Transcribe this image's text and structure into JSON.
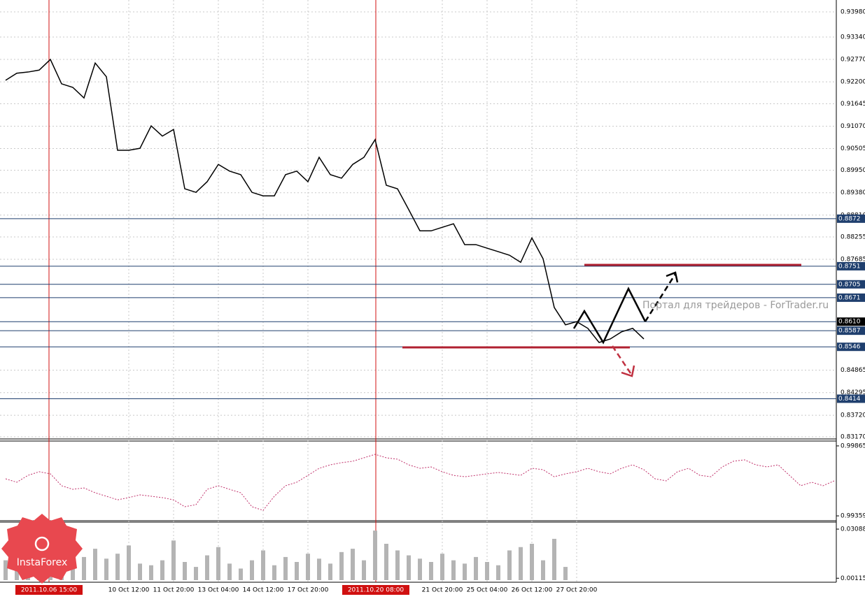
{
  "chart_data": [
    {
      "type": "line",
      "color": "#000000",
      "ylim": [
        0.8317,
        0.9398
      ],
      "watermark": "Портал для трейдеров - ForTrader.ru",
      "logo": "InstaForex",
      "markers": [
        "2011.10.06 15:00",
        "2011.10.20 08:00"
      ],
      "categories": [
        null,
        null,
        null,
        null,
        null,
        null,
        null,
        null,
        null,
        null,
        null,
        "10 Oct 12:00",
        null,
        null,
        null,
        "11 Oct 20:00",
        null,
        null,
        null,
        "13 Oct 04:00",
        null,
        null,
        null,
        "14 Oct 12:00",
        null,
        null,
        null,
        "17 Oct 20:00",
        null,
        null,
        null,
        null,
        null,
        null,
        null,
        null,
        null,
        null,
        null,
        "21 Oct 20:00",
        null,
        null,
        null,
        "25 Oct 04:00",
        null,
        null,
        null,
        "26 Oct 12:00",
        null,
        null,
        null,
        "27 Oct 20:00",
        null,
        null,
        null,
        null,
        null,
        null,
        null,
        null,
        null,
        null,
        null,
        null,
        null,
        null,
        null,
        null,
        null,
        null,
        null,
        null,
        null,
        null,
        null
      ],
      "values": [
        0.9224,
        0.9242,
        0.9245,
        0.925,
        0.9277,
        0.9215,
        0.9206,
        0.9179,
        0.9268,
        0.9233,
        0.9046,
        0.9046,
        0.9051,
        0.9108,
        0.9082,
        0.9099,
        0.8948,
        0.8939,
        0.8966,
        0.901,
        0.8993,
        0.8984,
        0.8939,
        0.893,
        0.893,
        0.8984,
        0.8993,
        0.8966,
        0.9028,
        0.8984,
        0.8975,
        0.901,
        0.9028,
        0.9073,
        0.8957,
        0.8948,
        0.8895,
        0.8841,
        0.8841,
        0.885,
        0.8859,
        0.8806,
        0.8806,
        0.8797,
        0.8788,
        0.8779,
        0.8761,
        0.8823,
        0.877,
        0.8646,
        0.8602,
        0.861,
        0.8593,
        0.8557,
        0.8566,
        0.8584,
        0.8593,
        0.8566,
        null,
        null,
        null,
        null,
        null,
        null,
        null,
        null,
        null,
        null,
        null,
        null,
        null,
        null,
        null,
        null,
        null
      ],
      "yticks": [
        {
          "value": 0.9398,
          "label": "0.93980"
        },
        {
          "value": 0.9334,
          "label": "0.93340"
        },
        {
          "value": 0.9277,
          "label": "0.92770"
        },
        {
          "value": 0.922,
          "label": "0.92200"
        },
        0.91645,
        {
          "value": 0.9107,
          "label": "0.91070"
        },
        0.90505,
        {
          "value": 0.8995,
          "label": "0.89950"
        },
        {
          "value": 0.8938,
          "label": "0.89380"
        },
        {
          "value": 0.8881,
          "label": "0.88810"
        },
        0.88255,
        0.87685,
        0.84865,
        0.84295,
        {
          "value": 0.8372,
          "label": "0.83720"
        },
        {
          "value": 0.8317,
          "label": "0.83170"
        }
      ],
      "levels": [
        0.8872,
        0.8751,
        0.8705,
        0.8671,
        {
          "value": 0.861,
          "label": "0.8610"
        },
        0.8587,
        0.8546,
        0.8414
      ]
    },
    {
      "type": "line",
      "color": "#c0306a",
      "ylim": [
        0.99334,
        0.9989
      ],
      "values": [
        0.99627,
        0.99602,
        0.99652,
        0.99678,
        0.99663,
        0.99577,
        0.99551,
        0.99561,
        0.99526,
        0.99501,
        0.99475,
        0.99491,
        0.99511,
        0.99501,
        0.99491,
        0.99475,
        0.99425,
        0.9944,
        0.99551,
        0.99577,
        0.99551,
        0.99526,
        0.99425,
        0.99399,
        0.99501,
        0.99577,
        0.99602,
        0.99652,
        0.99703,
        0.99728,
        0.99744,
        0.99754,
        0.99779,
        0.99804,
        0.99779,
        0.99769,
        0.99728,
        0.99703,
        0.99713,
        0.99678,
        0.99652,
        0.99642,
        0.99652,
        0.99663,
        0.99673,
        0.99663,
        0.99652,
        0.99703,
        0.99693,
        0.99642,
        0.99663,
        0.99678,
        0.99703,
        0.99678,
        0.99663,
        0.99703,
        0.99728,
        0.99693,
        0.99627,
        0.99612,
        0.99678,
        0.99703,
        0.99652,
        0.99642,
        0.99713,
        0.99754,
        0.99764,
        0.99728,
        0.99713,
        0.99728,
        0.99652,
        0.99577,
        0.99602,
        0.99577,
        0.99612
      ],
      "yticks": [
        0.99865,
        0.99359
      ]
    },
    {
      "type": "bar",
      "color": "#b4b4b4",
      "ylim": [
        0,
        0.0347
      ],
      "values": [
        0.012,
        0.018,
        0.009,
        0.022,
        0.015,
        0.011,
        0.008,
        0.014,
        0.019,
        0.013,
        0.016,
        0.021,
        0.01,
        0.009,
        0.012,
        0.024,
        0.011,
        0.008,
        0.015,
        0.02,
        0.01,
        0.007,
        0.012,
        0.018,
        0.009,
        0.014,
        0.011,
        0.016,
        0.013,
        0.01,
        0.017,
        0.019,
        0.012,
        0.03,
        0.022,
        0.018,
        0.015,
        0.013,
        0.011,
        0.016,
        0.012,
        0.01,
        0.014,
        0.011,
        0.009,
        0.018,
        0.02,
        0.022,
        0.012,
        0.025,
        0.008,
        null,
        null,
        null,
        null,
        null,
        null,
        null,
        null,
        null,
        null,
        null,
        null,
        null,
        null,
        null,
        null,
        null,
        null,
        null,
        null,
        null,
        null,
        null,
        null
      ],
      "yticks": [
        0.03088,
        0.00115
      ]
    }
  ]
}
